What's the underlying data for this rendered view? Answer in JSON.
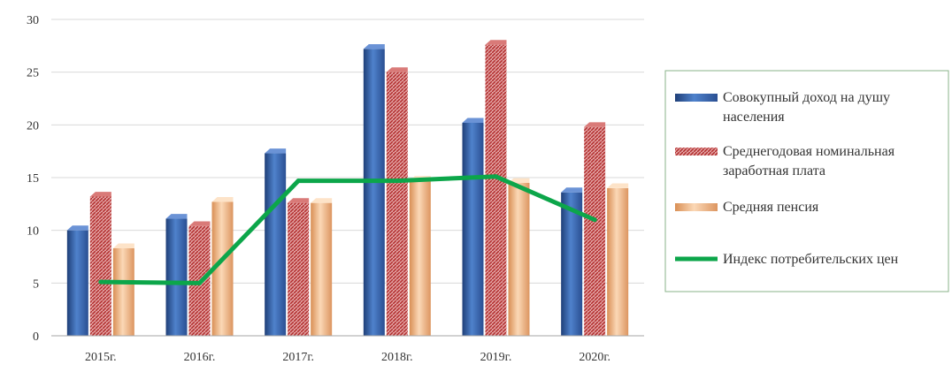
{
  "chart_data": {
    "type": "bar",
    "categories": [
      "2015г.",
      "2016г.",
      "2017г.",
      "2018г.",
      "2019г.",
      "2020г."
    ],
    "ylim": [
      0,
      30
    ],
    "yticks": [
      0,
      5,
      10,
      15,
      20,
      25,
      30
    ],
    "grid": true,
    "legend_position": "right",
    "series": [
      {
        "name": "Совокупный доход на душу населения",
        "name_lines": [
          "Совокупный доход на душу",
          "населения"
        ],
        "kind": "bar",
        "values": [
          10.0,
          11.1,
          17.3,
          27.2,
          20.2,
          13.6
        ],
        "color": "#3d6ab0"
      },
      {
        "name": "Среднегодовая номинальная заработная плата",
        "name_lines": [
          "Среднегодовая номинальная",
          "заработная плата"
        ],
        "kind": "bar",
        "values": [
          13.2,
          10.4,
          12.6,
          25.0,
          27.6,
          19.8
        ],
        "color": "#c0504d"
      },
      {
        "name": "Средняя пенсия",
        "name_lines": [
          "Средняя пенсия"
        ],
        "kind": "bar",
        "values": [
          8.3,
          12.7,
          12.6,
          14.7,
          14.5,
          14.0
        ],
        "color": "#f3b98a"
      },
      {
        "name": "Индекс потребительских цен",
        "name_lines": [
          "Индекс потребительских цен"
        ],
        "kind": "line",
        "values": [
          5.1,
          5.0,
          14.7,
          14.7,
          15.1,
          11.0
        ],
        "color": "#0ca64a"
      }
    ]
  }
}
